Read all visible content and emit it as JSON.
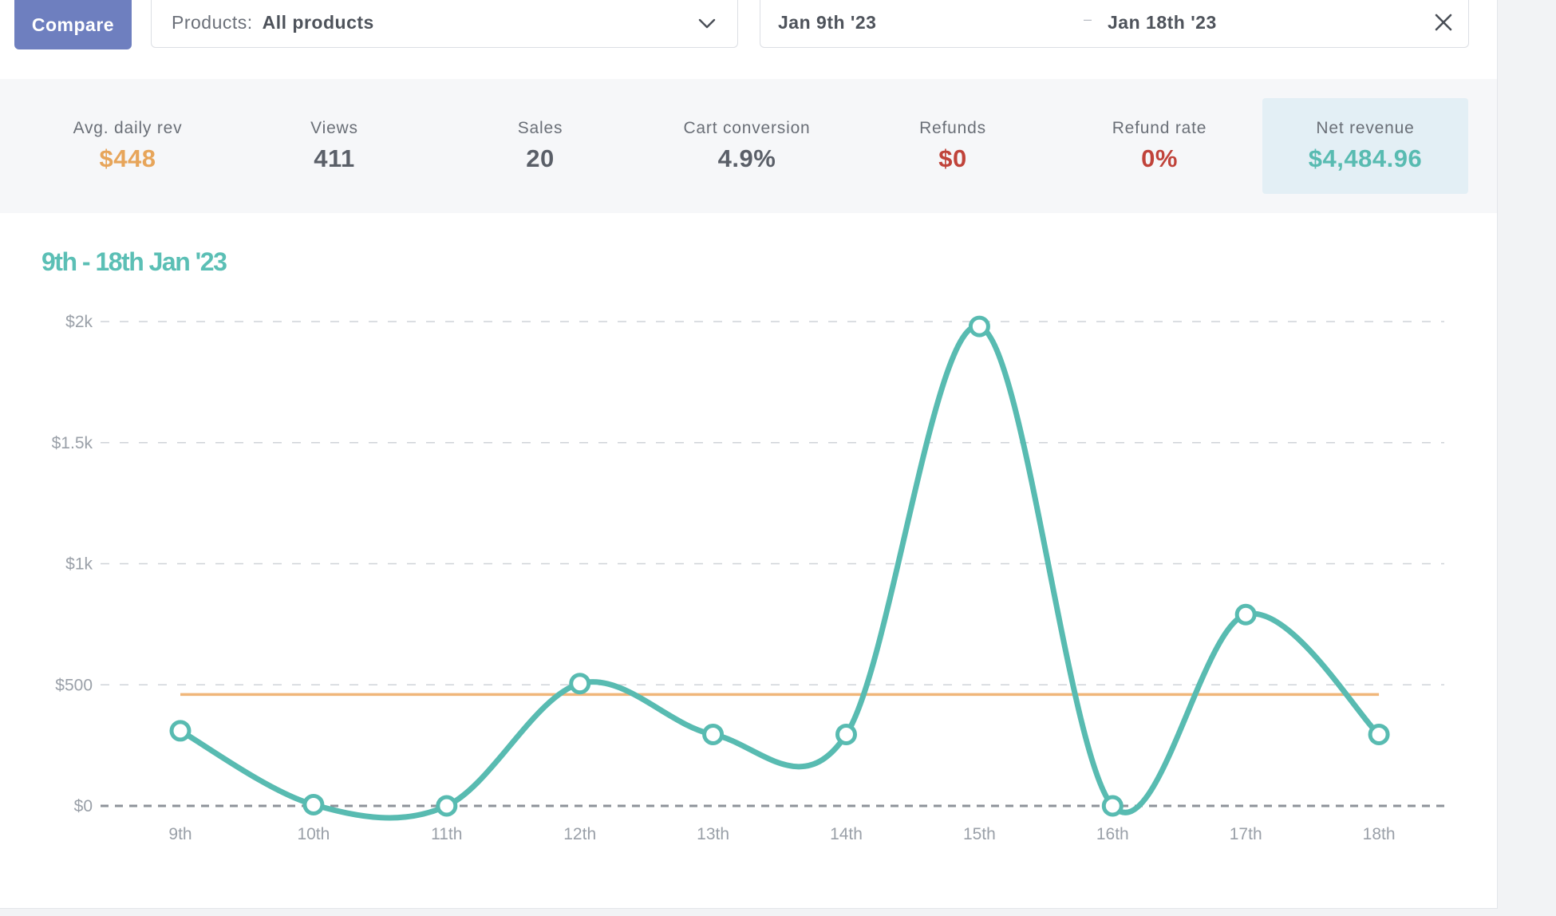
{
  "toolbar": {
    "compare_label": "Compare",
    "products_label": "Products:",
    "products_value": "All products",
    "date_start": "Jan 9th '23",
    "date_separator": "–",
    "date_end": "Jan 18th '23"
  },
  "stats": [
    {
      "label": "Avg. daily rev",
      "value": "$448",
      "color": "#e7a55a",
      "active": false
    },
    {
      "label": "Views",
      "value": "411",
      "color": "#5a5f68",
      "active": false
    },
    {
      "label": "Sales",
      "value": "20",
      "color": "#5a5f68",
      "active": false
    },
    {
      "label": "Cart conversion",
      "value": "4.9%",
      "color": "#5a5f68",
      "active": false
    },
    {
      "label": "Refunds",
      "value": "$0",
      "color": "#c0433a",
      "active": false
    },
    {
      "label": "Refund rate",
      "value": "0%",
      "color": "#c0433a",
      "active": false
    },
    {
      "label": "Net revenue",
      "value": "$4,484.96",
      "color": "#58bbb1",
      "active": true
    }
  ],
  "colors": {
    "accent": "#58bbb1",
    "average_line": "#f0b67a",
    "compare_button": "#6e7fbf"
  },
  "chart_data": {
    "type": "line",
    "title": "9th - 18th Jan '23",
    "categories": [
      "9th",
      "10th",
      "11th",
      "12th",
      "13th",
      "14th",
      "15th",
      "16th",
      "17th",
      "18th"
    ],
    "series": [
      {
        "values": [
          310,
          5,
          0,
          505,
          295,
          295,
          1980,
          0,
          790,
          295
        ]
      }
    ],
    "reference_line": {
      "value": 460
    },
    "y_ticks": [
      0,
      500,
      1000,
      1500,
      2000
    ],
    "y_tick_labels": [
      "$0",
      "$500",
      "$1k",
      "$1.5k",
      "$2k"
    ],
    "ylim": [
      0,
      2000
    ],
    "grid": true,
    "smooth": true
  }
}
